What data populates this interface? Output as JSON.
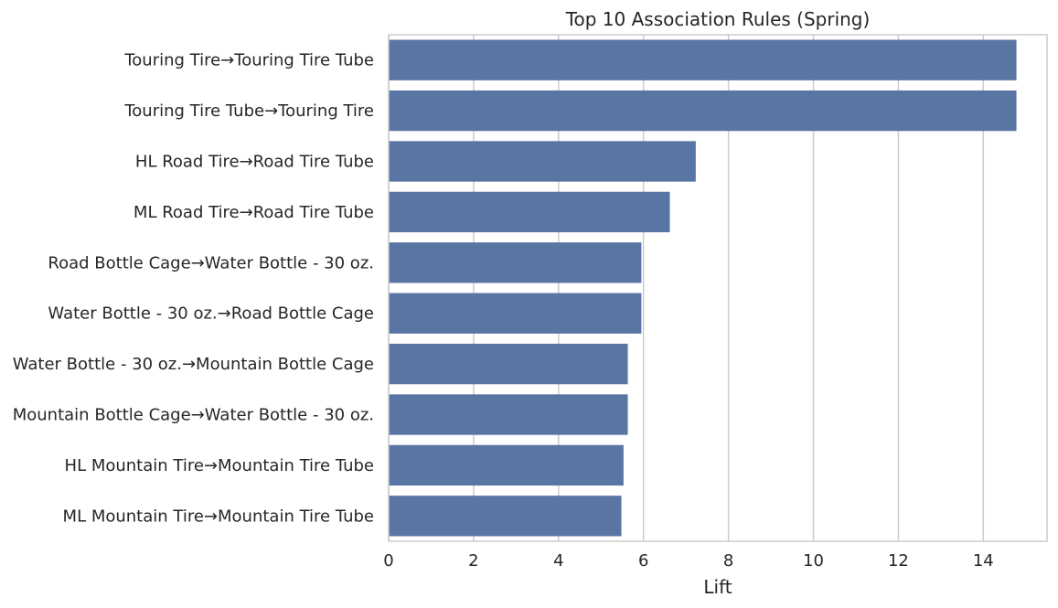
{
  "chart_data": {
    "type": "bar",
    "orientation": "horizontal",
    "title": "Top 10 Association Rules (Spring)",
    "xlabel": "Lift",
    "ylabel": "",
    "xlim": [
      0,
      15.5
    ],
    "xticks": [
      0,
      2,
      4,
      6,
      8,
      10,
      12,
      14
    ],
    "grid": "vertical",
    "bar_color": "#5975a4",
    "categories": [
      "Touring Tire→Touring Tire Tube",
      "Touring Tire Tube→Touring Tire",
      "HL Road Tire→Road Tire Tube",
      "ML Road Tire→Road Tire Tube",
      "Road Bottle Cage→Water Bottle - 30 oz.",
      "Water Bottle - 30 oz.→Road Bottle Cage",
      "Water Bottle - 30 oz.→Mountain Bottle Cage",
      "Mountain Bottle Cage→Water Bottle - 30 oz.",
      "HL Mountain Tire→Mountain Tire Tube",
      "ML Mountain Tire→Mountain Tire Tube"
    ],
    "values": [
      14.78,
      14.78,
      7.23,
      6.62,
      5.95,
      5.95,
      5.63,
      5.63,
      5.53,
      5.48
    ]
  }
}
